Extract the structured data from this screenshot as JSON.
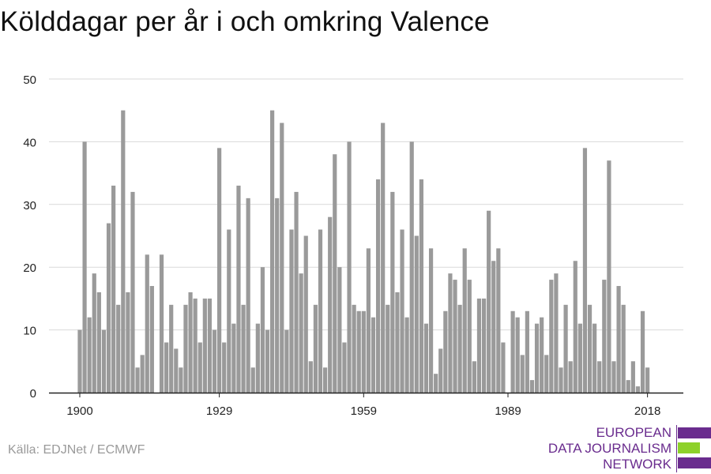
{
  "title": "Kölddagar per år i och omkring Valence",
  "source": "Källa: EDJNet / ECMWF",
  "logo": {
    "line1": "EUROPEAN",
    "line2": "DATA JOURNALISM",
    "line3": "NETWORK",
    "colors": [
      "#6a2c8e",
      "#8ed12a",
      "#6a2c8e"
    ]
  },
  "chart_data": {
    "type": "bar",
    "title": "Kölddagar per år i och omkring Valence",
    "xlabel": "",
    "ylabel": "",
    "ylim": [
      0,
      50
    ],
    "yticks": [
      0,
      10,
      20,
      30,
      40,
      50
    ],
    "xticks": [
      1900,
      1929,
      1959,
      1989,
      2018
    ],
    "grid": true,
    "bar_color": "#9a9a9a",
    "x_start": 1900,
    "years": [
      1900,
      1901,
      1902,
      1903,
      1904,
      1905,
      1906,
      1907,
      1908,
      1909,
      1910,
      1911,
      1912,
      1913,
      1914,
      1915,
      1916,
      1917,
      1918,
      1919,
      1920,
      1921,
      1922,
      1923,
      1924,
      1925,
      1926,
      1927,
      1928,
      1929,
      1930,
      1931,
      1932,
      1933,
      1934,
      1935,
      1936,
      1937,
      1938,
      1939,
      1940,
      1941,
      1942,
      1943,
      1944,
      1945,
      1946,
      1947,
      1948,
      1949,
      1950,
      1951,
      1952,
      1953,
      1954,
      1955,
      1956,
      1957,
      1958,
      1959,
      1960,
      1961,
      1962,
      1963,
      1964,
      1965,
      1966,
      1967,
      1968,
      1969,
      1970,
      1971,
      1972,
      1973,
      1974,
      1975,
      1976,
      1977,
      1978,
      1979,
      1980,
      1981,
      1982,
      1983,
      1984,
      1985,
      1986,
      1987,
      1988,
      1989,
      1990,
      1991,
      1992,
      1993,
      1994,
      1995,
      1996,
      1997,
      1998,
      1999,
      2000,
      2001,
      2002,
      2003,
      2004,
      2005,
      2006,
      2007,
      2008,
      2009,
      2010,
      2011,
      2012,
      2013,
      2014,
      2015,
      2016,
      2017,
      2018
    ],
    "values": [
      10,
      40,
      12,
      19,
      16,
      10,
      27,
      33,
      14,
      45,
      16,
      32,
      4,
      6,
      22,
      17,
      0,
      22,
      8,
      14,
      7,
      4,
      14,
      16,
      15,
      8,
      15,
      15,
      10,
      39,
      8,
      26,
      11,
      33,
      14,
      31,
      4,
      11,
      20,
      10,
      45,
      31,
      43,
      10,
      26,
      32,
      19,
      25,
      5,
      14,
      26,
      4,
      28,
      38,
      20,
      8,
      40,
      14,
      13,
      13,
      23,
      12,
      34,
      43,
      14,
      32,
      16,
      26,
      12,
      40,
      25,
      34,
      11,
      23,
      3,
      7,
      13,
      19,
      18,
      14,
      23,
      18,
      5,
      15,
      15,
      29,
      21,
      23,
      8,
      0,
      13,
      12,
      6,
      13,
      2,
      11,
      12,
      6,
      18,
      19,
      4,
      14,
      5,
      21,
      11,
      39,
      14,
      11,
      5,
      18,
      37,
      5,
      17,
      14,
      2,
      5,
      1,
      13,
      4
    ]
  }
}
